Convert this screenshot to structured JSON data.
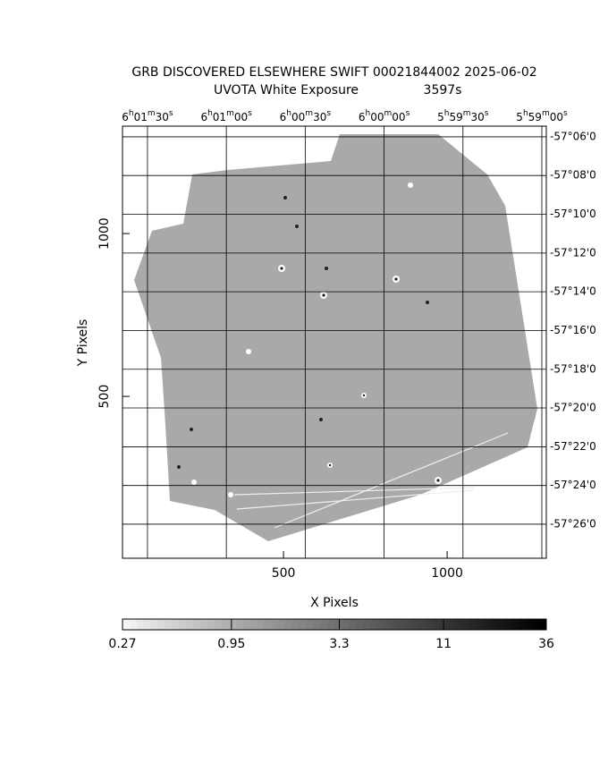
{
  "chart_data": {
    "type": "image",
    "title": "GRB DISCOVERED ELSEWHERE SWIFT 00021844002 2025-06-02",
    "subtitle": "UVOTA White Exposure",
    "exposure": "3597s",
    "x_label": "X Pixels",
    "y_label": "Y Pixels",
    "xlim": [
      8,
      1303
    ],
    "xticks": [
      500,
      1000
    ],
    "ylim": [
      3,
      1330
    ],
    "yticks": [
      500,
      1000
    ],
    "x2lim": [
      21699.5,
      21538.3
    ],
    "x2ticks": [
      {
        "value": 21690,
        "label": "6h01m30s"
      },
      {
        "value": 21660,
        "label": "6h01m00s"
      },
      {
        "value": 21630,
        "label": "6h00m30s"
      },
      {
        "value": 21600,
        "label": "6h00m00s"
      },
      {
        "value": 21570,
        "label": "5h59m30s"
      },
      {
        "value": 21540,
        "label": "5h59m00s"
      }
    ],
    "y2lim": [
      -57.4626,
      -57.0908
    ],
    "y2ticks": [
      {
        "value": -57.1,
        "label": "-57°06'0"
      },
      {
        "value": -57.1333,
        "label": "-57°08'0"
      },
      {
        "value": -57.1667,
        "label": "-57°10'0"
      },
      {
        "value": -57.2,
        "label": "-57°12'0"
      },
      {
        "value": -57.2333,
        "label": "-57°14'0"
      },
      {
        "value": -57.2667,
        "label": "-57°16'0"
      },
      {
        "value": -57.3,
        "label": "-57°18'0"
      },
      {
        "value": -57.3333,
        "label": "-57°20'0"
      },
      {
        "value": -57.3667,
        "label": "-57°22'0"
      },
      {
        "value": -57.4,
        "label": "-57°24'0"
      },
      {
        "value": -57.4333,
        "label": "-57°26'0"
      }
    ],
    "grid": true,
    "colorbar": {
      "lim": [
        0.27,
        36
      ],
      "log": true,
      "ticks": [
        0.27,
        0.95,
        3.3,
        11,
        36
      ]
    }
  }
}
